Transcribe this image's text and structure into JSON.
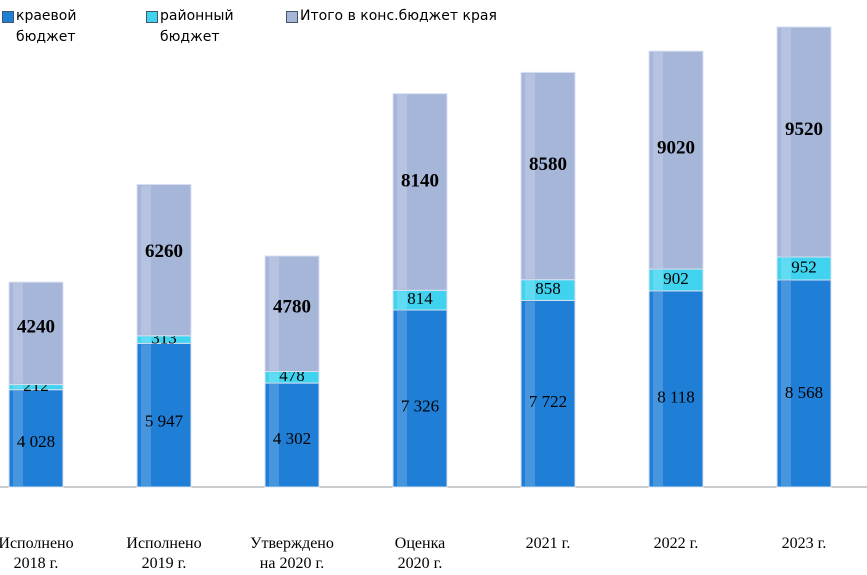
{
  "chart_data": {
    "type": "bar",
    "stacked": true,
    "categories": [
      "Исполнено\n2018 г.",
      "Исполнено\n2019 г.",
      "Утверждено\nна 2020 г.",
      "Оценка\n2020 г.",
      "2021 г.",
      "2022 г.",
      "2023 г."
    ],
    "series": [
      {
        "name": "краевой\nбюджет",
        "color": "#1f7fd6",
        "values": [
          4028,
          5947,
          4302,
          7326,
          7722,
          8118,
          8568
        ],
        "value_labels": [
          "4 028",
          "5 947",
          "4 302",
          "7 326",
          "7 722",
          "8 118",
          "8 568"
        ]
      },
      {
        "name": "районный\nбюджет",
        "color": "#3fd3ef",
        "values": [
          212,
          313,
          478,
          814,
          858,
          902,
          952
        ]
      },
      {
        "name": "Итого в конс.бюджет края",
        "color": "#a6b6d9",
        "values": [
          4240,
          6260,
          4780,
          8140,
          8580,
          9020,
          9520
        ]
      }
    ],
    "legend": "top-left"
  }
}
